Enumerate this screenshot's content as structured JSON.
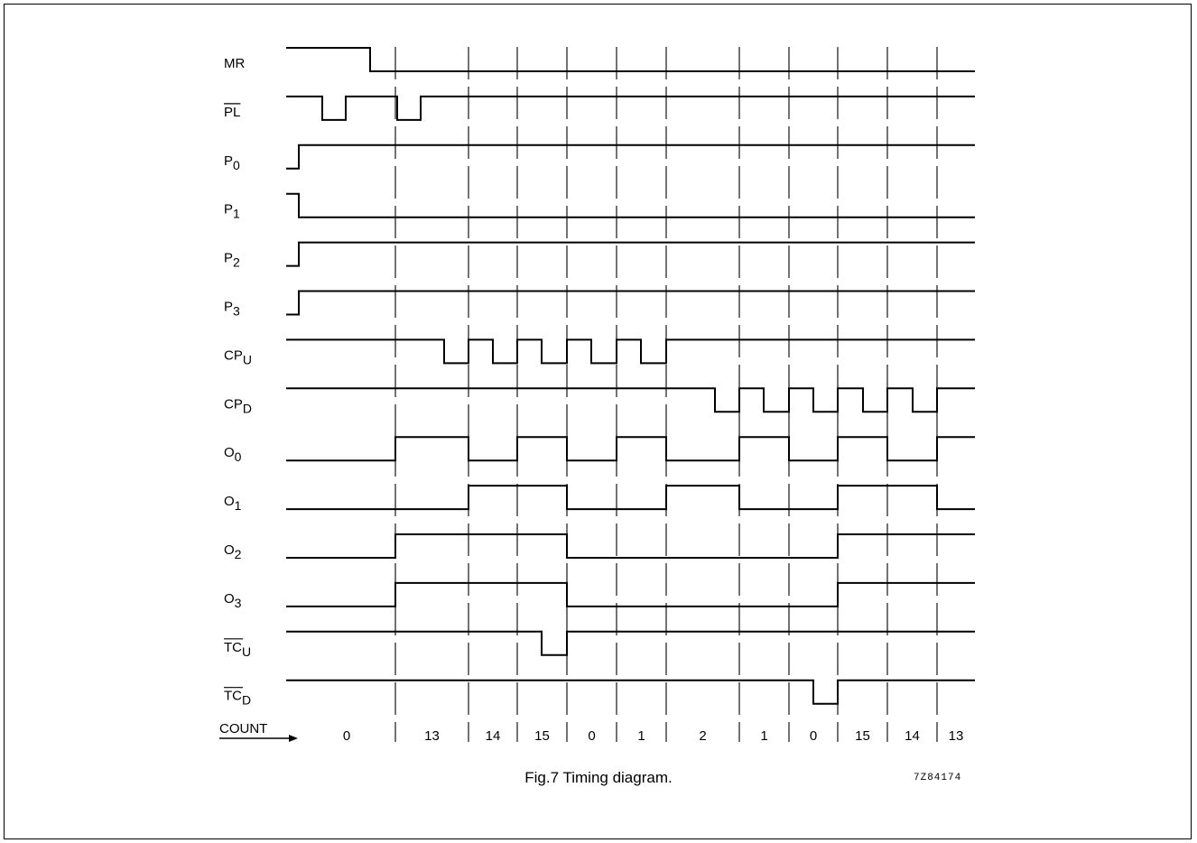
{
  "caption": "Fig.7  Timing diagram.",
  "reference_code": "7Z84174",
  "count_label": "COUNT",
  "signals": [
    {
      "id": "MR",
      "base": "MR",
      "sub": "",
      "overline": false
    },
    {
      "id": "PL",
      "base": "PL",
      "sub": "",
      "overline": true
    },
    {
      "id": "P0",
      "base": "P",
      "sub": "0",
      "overline": false
    },
    {
      "id": "P1",
      "base": "P",
      "sub": "1",
      "overline": false
    },
    {
      "id": "P2",
      "base": "P",
      "sub": "2",
      "overline": false
    },
    {
      "id": "P3",
      "base": "P",
      "sub": "3",
      "overline": false
    },
    {
      "id": "CPU",
      "base": "CP",
      "sub": "U",
      "overline": false
    },
    {
      "id": "CPD",
      "base": "CP",
      "sub": "D",
      "overline": false
    },
    {
      "id": "Q0",
      "base": "O",
      "sub": "0",
      "overline": false
    },
    {
      "id": "Q1",
      "base": "O",
      "sub": "1",
      "overline": false
    },
    {
      "id": "Q2",
      "base": "O",
      "sub": "2",
      "overline": false
    },
    {
      "id": "Q3",
      "base": "O",
      "sub": "3",
      "overline": false
    },
    {
      "id": "TCU",
      "base": "TC",
      "sub": "U",
      "overline": true
    },
    {
      "id": "TCD",
      "base": "TC",
      "sub": "D",
      "overline": true
    }
  ],
  "counts": [
    "0",
    "13",
    "14",
    "15",
    "0",
    "1",
    "2",
    "1",
    "0",
    "15",
    "14",
    "13"
  ]
}
